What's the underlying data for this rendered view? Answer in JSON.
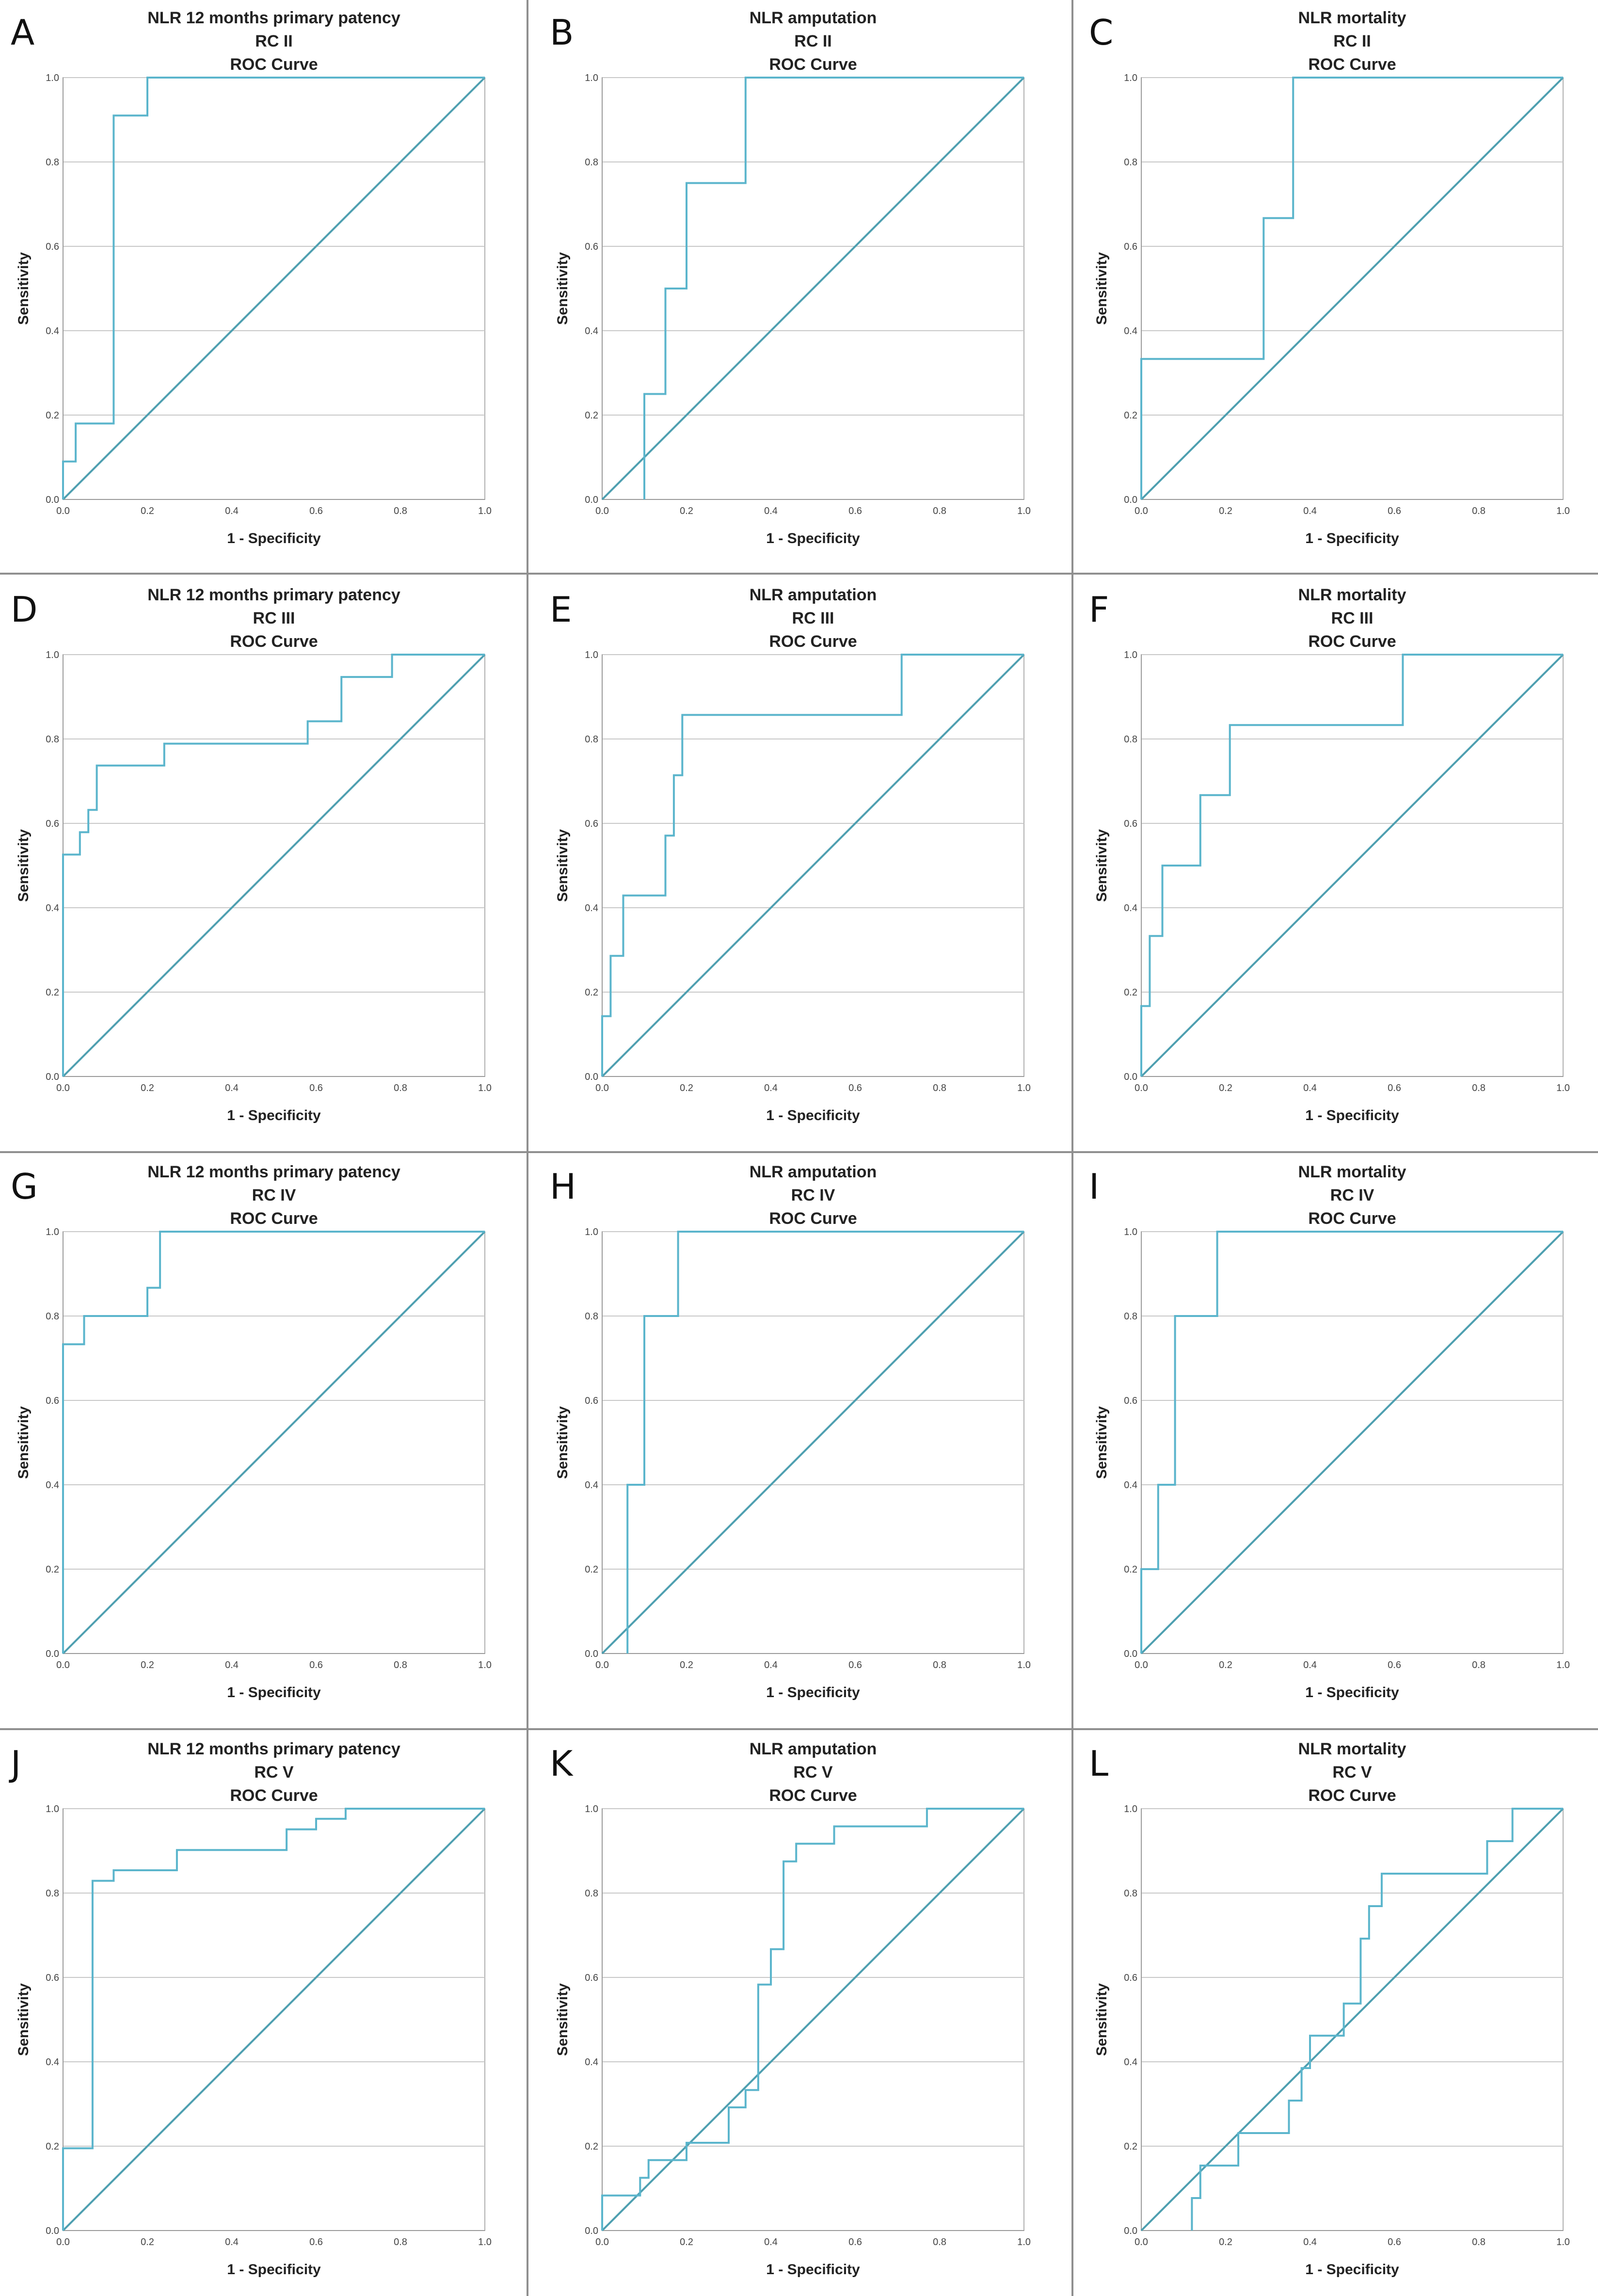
{
  "colors": {
    "roc": "#5bb5cc",
    "reference": "#4e9fb0"
  },
  "chart_data": [
    {
      "letter": "A",
      "type": "line",
      "title": [
        "NLR 12 months primary patency",
        "RC II",
        "ROC Curve"
      ],
      "xlabel": "1 - Specificity",
      "ylabel": "Sensitivity",
      "xlim": [
        0,
        1
      ],
      "ylim": [
        0,
        1
      ],
      "ticks": [
        "0.0",
        "0.2",
        "0.4",
        "0.6",
        "0.8",
        "1.0"
      ],
      "grid": "horizontal",
      "series": [
        {
          "x": [
            0,
            0,
            0.03,
            0.03,
            0.12,
            0.12,
            0.2,
            0.2,
            1
          ],
          "y": [
            0,
            0.09,
            0.09,
            0.18,
            0.18,
            0.91,
            0.91,
            1,
            1
          ]
        },
        {
          "x": [
            0,
            1
          ],
          "y": [
            0,
            1
          ]
        }
      ]
    },
    {
      "letter": "B",
      "type": "line",
      "title": [
        "NLR amputation",
        "RC II",
        "ROC Curve"
      ],
      "xlabel": "1 - Specificity",
      "ylabel": "Sensitivity",
      "xlim": [
        0,
        1
      ],
      "ylim": [
        0,
        1
      ],
      "ticks": [
        "0.0",
        "0.2",
        "0.4",
        "0.6",
        "0.8",
        "1.0"
      ],
      "grid": "horizontal",
      "series": [
        {
          "x": [
            0.1,
            0.1,
            0.15,
            0.15,
            0.2,
            0.2,
            0.34,
            0.34,
            1
          ],
          "y": [
            0,
            0.25,
            0.25,
            0.5,
            0.5,
            0.75,
            0.75,
            1,
            1
          ]
        },
        {
          "x": [
            0,
            1
          ],
          "y": [
            0,
            1
          ]
        }
      ]
    },
    {
      "letter": "C",
      "type": "line",
      "title": [
        "NLR mortality",
        "RC II",
        "ROC Curve"
      ],
      "xlabel": "1 - Specificity",
      "ylabel": "Sensitivity",
      "xlim": [
        0,
        1
      ],
      "ylim": [
        0,
        1
      ],
      "ticks": [
        "0.0",
        "0.2",
        "0.4",
        "0.6",
        "0.8",
        "1.0"
      ],
      "grid": "horizontal",
      "series": [
        {
          "x": [
            0,
            0,
            0.29,
            0.29,
            0.36,
            0.36,
            1
          ],
          "y": [
            0,
            0.333,
            0.333,
            0.667,
            0.667,
            1,
            1
          ]
        },
        {
          "x": [
            0,
            1
          ],
          "y": [
            0,
            1
          ]
        }
      ]
    },
    {
      "letter": "D",
      "type": "line",
      "title": [
        "NLR 12 months primary patency",
        "RC III",
        "ROC Curve"
      ],
      "xlabel": "1 - Specificity",
      "ylabel": "Sensitivity",
      "xlim": [
        0,
        1
      ],
      "ylim": [
        0,
        1
      ],
      "ticks": [
        "0.0",
        "0.2",
        "0.4",
        "0.6",
        "0.8",
        "1.0"
      ],
      "grid": "horizontal",
      "series": [
        {
          "x": [
            0,
            0,
            0.04,
            0.04,
            0.06,
            0.06,
            0.08,
            0.08,
            0.24,
            0.24,
            0.58,
            0.58,
            0.66,
            0.66,
            0.78,
            0.78,
            1
          ],
          "y": [
            0,
            0.526,
            0.526,
            0.579,
            0.579,
            0.632,
            0.632,
            0.737,
            0.737,
            0.789,
            0.789,
            0.842,
            0.842,
            0.947,
            0.947,
            1,
            1
          ]
        },
        {
          "x": [
            0,
            1
          ],
          "y": [
            0,
            1
          ]
        }
      ]
    },
    {
      "letter": "E",
      "type": "line",
      "title": [
        "NLR amputation",
        "RC III",
        "ROC Curve"
      ],
      "xlabel": "1 - Specificity",
      "ylabel": "Sensitivity",
      "xlim": [
        0,
        1
      ],
      "ylim": [
        0,
        1
      ],
      "ticks": [
        "0.0",
        "0.2",
        "0.4",
        "0.6",
        "0.8",
        "1.0"
      ],
      "grid": "horizontal",
      "series": [
        {
          "x": [
            0,
            0,
            0.02,
            0.02,
            0.05,
            0.05,
            0.15,
            0.15,
            0.17,
            0.17,
            0.19,
            0.19,
            0.71,
            0.71,
            1
          ],
          "y": [
            0,
            0.143,
            0.143,
            0.286,
            0.286,
            0.429,
            0.429,
            0.571,
            0.571,
            0.714,
            0.714,
            0.857,
            0.857,
            1,
            1
          ]
        },
        {
          "x": [
            0,
            1
          ],
          "y": [
            0,
            1
          ]
        }
      ]
    },
    {
      "letter": "F",
      "type": "line",
      "title": [
        "NLR mortality",
        "RC III",
        "ROC Curve"
      ],
      "xlabel": "1 - Specificity",
      "ylabel": "Sensitivity",
      "xlim": [
        0,
        1
      ],
      "ylim": [
        0,
        1
      ],
      "ticks": [
        "0.0",
        "0.2",
        "0.4",
        "0.6",
        "0.8",
        "1.0"
      ],
      "grid": "horizontal",
      "series": [
        {
          "x": [
            0,
            0,
            0.02,
            0.02,
            0.05,
            0.05,
            0.14,
            0.14,
            0.21,
            0.21,
            0.62,
            0.62,
            1
          ],
          "y": [
            0,
            0.167,
            0.167,
            0.333,
            0.333,
            0.5,
            0.5,
            0.667,
            0.667,
            0.833,
            0.833,
            1,
            1
          ]
        },
        {
          "x": [
            0,
            1
          ],
          "y": [
            0,
            1
          ]
        }
      ]
    },
    {
      "letter": "G",
      "type": "line",
      "title": [
        "NLR 12 months primary patency",
        "RC IV",
        "ROC Curve"
      ],
      "xlabel": "1 - Specificity",
      "ylabel": "Sensitivity",
      "xlim": [
        0,
        1
      ],
      "ylim": [
        0,
        1
      ],
      "ticks": [
        "0.0",
        "0.2",
        "0.4",
        "0.6",
        "0.8",
        "1.0"
      ],
      "grid": "horizontal",
      "series": [
        {
          "x": [
            0,
            0,
            0.05,
            0.05,
            0.2,
            0.2,
            0.23,
            0.23,
            1
          ],
          "y": [
            0,
            0.733,
            0.733,
            0.8,
            0.8,
            0.867,
            0.867,
            1,
            1
          ]
        },
        {
          "x": [
            0,
            1
          ],
          "y": [
            0,
            1
          ]
        }
      ]
    },
    {
      "letter": "H",
      "type": "line",
      "title": [
        "NLR amputation",
        "RC IV",
        "ROC Curve"
      ],
      "xlabel": "1 - Specificity",
      "ylabel": "Sensitivity",
      "xlim": [
        0,
        1
      ],
      "ylim": [
        0,
        1
      ],
      "ticks": [
        "0.0",
        "0.2",
        "0.4",
        "0.6",
        "0.8",
        "1.0"
      ],
      "grid": "horizontal",
      "series": [
        {
          "x": [
            0.06,
            0.06,
            0.1,
            0.1,
            0.18,
            0.18,
            1
          ],
          "y": [
            0,
            0.4,
            0.4,
            0.8,
            0.8,
            1,
            1
          ]
        },
        {
          "x": [
            0,
            1
          ],
          "y": [
            0,
            1
          ]
        }
      ]
    },
    {
      "letter": "I",
      "type": "line",
      "title": [
        "NLR mortality",
        "RC IV",
        "ROC Curve"
      ],
      "xlabel": "1 - Specificity",
      "ylabel": "Sensitivity",
      "xlim": [
        0,
        1
      ],
      "ylim": [
        0,
        1
      ],
      "ticks": [
        "0.0",
        "0.2",
        "0.4",
        "0.6",
        "0.8",
        "1.0"
      ],
      "grid": "horizontal",
      "series": [
        {
          "x": [
            0,
            0,
            0.04,
            0.04,
            0.08,
            0.08,
            0.18,
            0.18,
            1
          ],
          "y": [
            0,
            0.2,
            0.2,
            0.4,
            0.4,
            0.8,
            0.8,
            1,
            1
          ]
        },
        {
          "x": [
            0,
            1
          ],
          "y": [
            0,
            1
          ]
        }
      ]
    },
    {
      "letter": "J",
      "type": "line",
      "title": [
        "NLR 12 months primary patency",
        "RC V",
        "ROC Curve"
      ],
      "xlabel": "1 - Specificity",
      "ylabel": "Sensitivity",
      "xlim": [
        0,
        1
      ],
      "ylim": [
        0,
        1
      ],
      "ticks": [
        "0.0",
        "0.2",
        "0.4",
        "0.6",
        "0.8",
        "1.0"
      ],
      "grid": "horizontal",
      "series": [
        {
          "x": [
            0,
            0,
            0.07,
            0.07,
            0.12,
            0.12,
            0.27,
            0.27,
            0.53,
            0.53,
            0.6,
            0.6,
            0.67,
            0.67,
            1
          ],
          "y": [
            0,
            0.195,
            0.195,
            0.829,
            0.829,
            0.854,
            0.854,
            0.902,
            0.902,
            0.951,
            0.951,
            0.976,
            0.976,
            1,
            1
          ]
        },
        {
          "x": [
            0,
            1
          ],
          "y": [
            0,
            1
          ]
        }
      ]
    },
    {
      "letter": "K",
      "type": "line",
      "title": [
        "NLR amputation",
        "RC V",
        "ROC Curve"
      ],
      "xlabel": "1 - Specificity",
      "ylabel": "Sensitivity",
      "xlim": [
        0,
        1
      ],
      "ylim": [
        0,
        1
      ],
      "ticks": [
        "0.0",
        "0.2",
        "0.4",
        "0.6",
        "0.8",
        "1.0"
      ],
      "grid": "horizontal",
      "series": [
        {
          "x": [
            0,
            0,
            0.09,
            0.09,
            0.11,
            0.11,
            0.2,
            0.2,
            0.3,
            0.3,
            0.34,
            0.34,
            0.37,
            0.37,
            0.4,
            0.4,
            0.43,
            0.43,
            0.46,
            0.46,
            0.55,
            0.55,
            0.77,
            0.77,
            1
          ],
          "y": [
            0,
            0.083,
            0.083,
            0.125,
            0.125,
            0.167,
            0.167,
            0.208,
            0.208,
            0.292,
            0.292,
            0.333,
            0.333,
            0.583,
            0.583,
            0.667,
            0.667,
            0.875,
            0.875,
            0.917,
            0.917,
            0.958,
            0.958,
            1,
            1
          ]
        },
        {
          "x": [
            0,
            1
          ],
          "y": [
            0,
            1
          ]
        }
      ]
    },
    {
      "letter": "L",
      "type": "line",
      "title": [
        "NLR mortality",
        "RC V",
        "ROC Curve"
      ],
      "xlabel": "1 - Specificity",
      "ylabel": "Sensitivity",
      "xlim": [
        0,
        1
      ],
      "ylim": [
        0,
        1
      ],
      "ticks": [
        "0.0",
        "0.2",
        "0.4",
        "0.6",
        "0.8",
        "1.0"
      ],
      "grid": "horizontal",
      "series": [
        {
          "x": [
            0.12,
            0.12,
            0.14,
            0.14,
            0.23,
            0.23,
            0.35,
            0.35,
            0.38,
            0.38,
            0.4,
            0.4,
            0.48,
            0.48,
            0.52,
            0.52,
            0.54,
            0.54,
            0.57,
            0.57,
            0.6,
            0.6,
            0.82,
            0.82,
            0.88,
            0.88,
            1
          ],
          "y": [
            0,
            0.077,
            0.077,
            0.154,
            0.154,
            0.231,
            0.231,
            0.308,
            0.308,
            0.385,
            0.385,
            0.462,
            0.462,
            0.538,
            0.538,
            0.692,
            0.692,
            0.769,
            0.769,
            0.846,
            0.846,
            0.846,
            0.846,
            0.923,
            0.923,
            1,
            1
          ]
        },
        {
          "x": [
            0,
            1
          ],
          "y": [
            0,
            1
          ]
        }
      ]
    }
  ]
}
